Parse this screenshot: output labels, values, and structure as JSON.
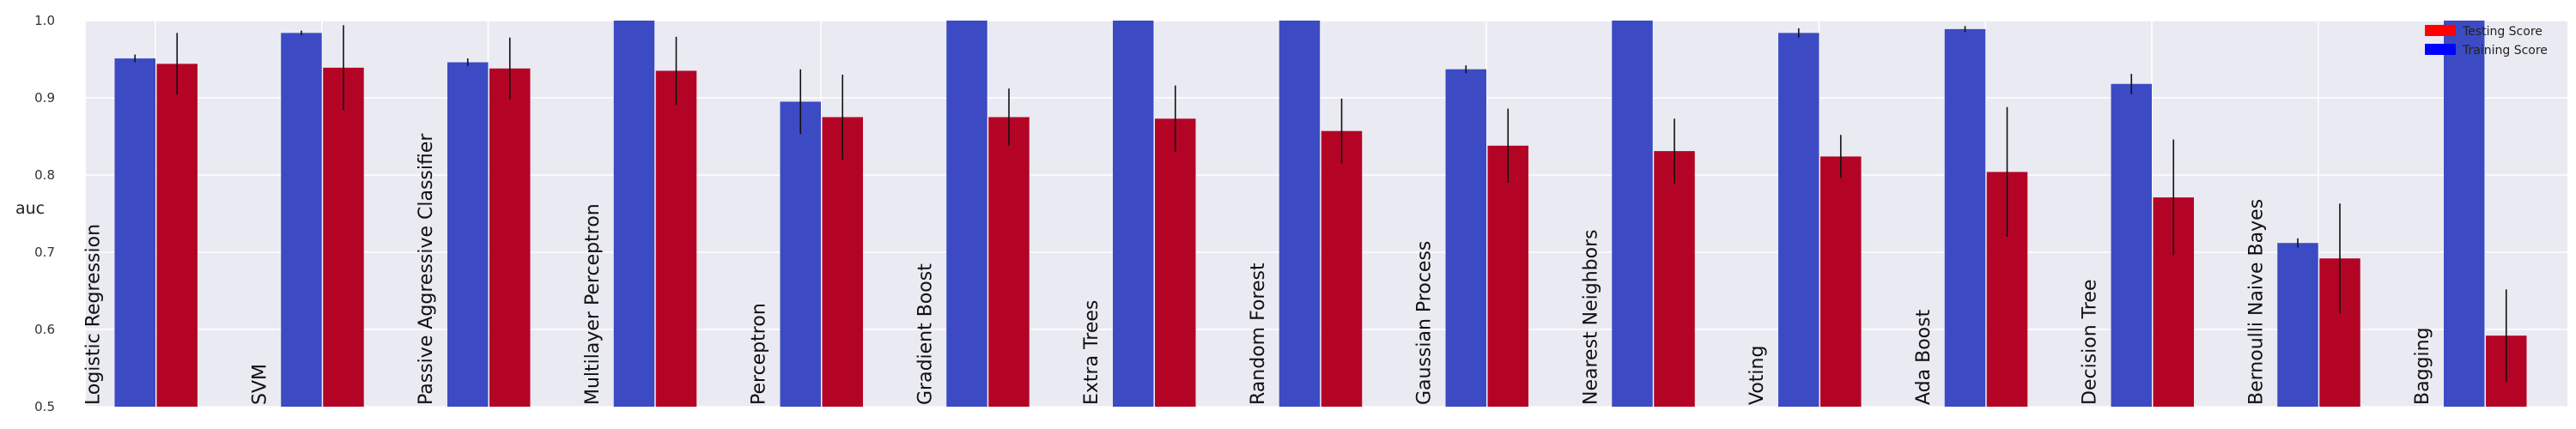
{
  "chart_data": {
    "type": "bar",
    "ylabel": "auc",
    "xlabel": "",
    "ylim": [
      0.5,
      1.0
    ],
    "yticks": [
      "0.5",
      "0.6",
      "0.7",
      "0.8",
      "0.9",
      "1.0"
    ],
    "grid": true,
    "legend_position": "top-right",
    "categories": [
      "Logistic Regression",
      "SVM",
      "Passive Aggressive Classifier",
      "Multilayer Perceptron",
      "Perceptron",
      "Gradient Boost",
      "Extra Trees",
      "Random Forest",
      "Gaussian Process",
      "Nearest Neighbors",
      "Voting",
      "Ada Boost",
      "Decision Tree",
      "Bernoulli Naive Bayes",
      "Bagging"
    ],
    "series": [
      {
        "name": "Training Score",
        "color": "#3c4bc3",
        "legend_color": "#0000ff",
        "values": [
          0.951,
          0.984,
          0.946,
          1.0,
          0.895,
          1.0,
          1.0,
          1.0,
          0.937,
          1.0,
          0.984,
          0.989,
          0.918,
          0.712,
          1.0
        ],
        "errors": [
          0.005,
          0.003,
          0.005,
          0.0,
          0.042,
          0.0,
          0.0,
          0.0,
          0.005,
          0.0,
          0.006,
          0.004,
          0.013,
          0.006,
          0.0
        ]
      },
      {
        "name": "Testing Score",
        "color": "#b40426",
        "legend_color": "#ff0000",
        "values": [
          0.944,
          0.939,
          0.938,
          0.935,
          0.875,
          0.875,
          0.873,
          0.857,
          0.838,
          0.831,
          0.824,
          0.804,
          0.771,
          0.692,
          0.592
        ],
        "errors": [
          0.04,
          0.055,
          0.04,
          0.044,
          0.055,
          0.037,
          0.043,
          0.042,
          0.048,
          0.042,
          0.028,
          0.084,
          0.075,
          0.071,
          0.06
        ]
      }
    ]
  }
}
